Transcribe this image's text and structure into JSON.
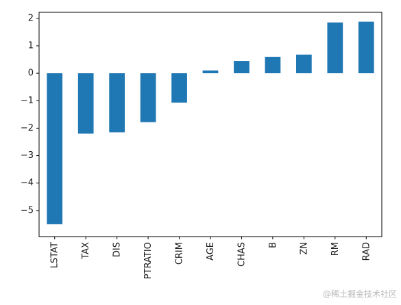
{
  "chart_data": {
    "type": "bar",
    "categories": [
      "LSTAT",
      "TAX",
      "DIS",
      "PTRATIO",
      "CRIM",
      "AGE",
      "CHAS",
      "B",
      "ZN",
      "RM",
      "RAD"
    ],
    "values": [
      -5.5,
      -2.2,
      -2.15,
      -1.78,
      -1.07,
      0.1,
      0.45,
      0.6,
      0.68,
      1.85,
      1.88
    ],
    "yticks": [
      2,
      1,
      0,
      -1,
      -2,
      -3,
      -4,
      -5
    ],
    "ylim": [
      -5.95,
      2.22
    ],
    "bar_color": "#1f77b4",
    "grid": false,
    "title": "",
    "xlabel": "",
    "ylabel": ""
  },
  "watermark": "@稀土掘金技术社区"
}
